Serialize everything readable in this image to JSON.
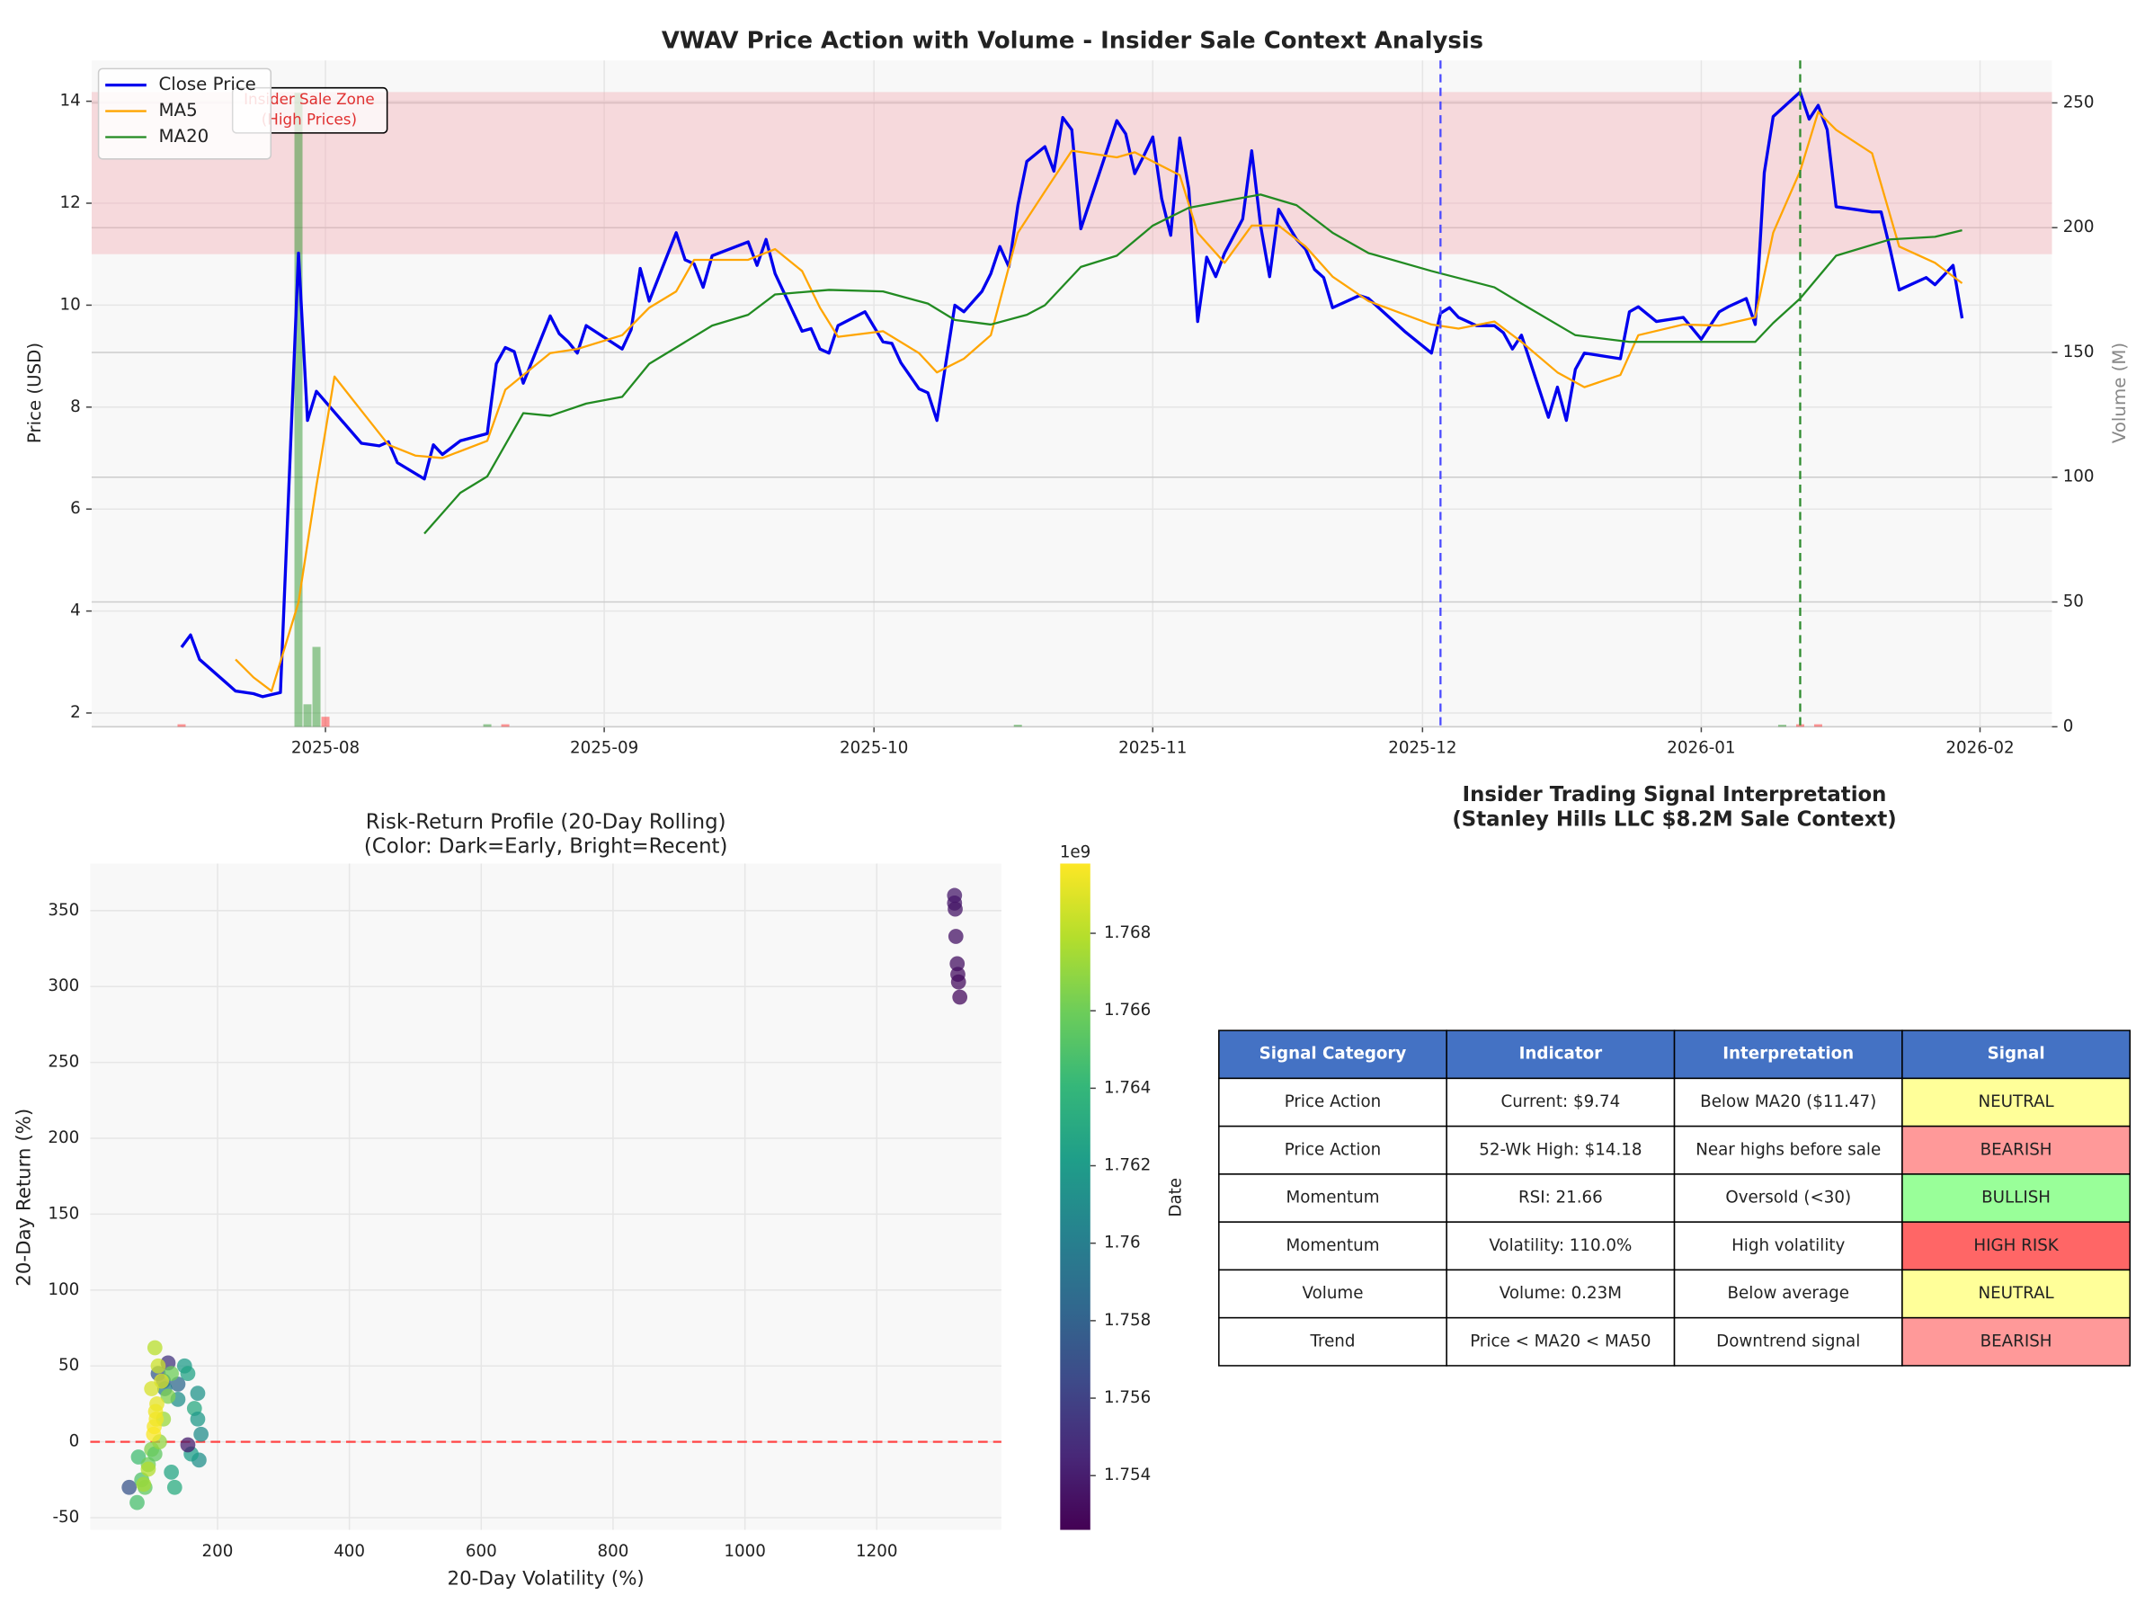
{
  "chart_data": [
    {
      "type": "line",
      "title": "VWAV Price Action with Volume - Insider Sale Context Analysis",
      "y_label": "Price (USD)",
      "y2_label": "Volume (M)",
      "xlim": [
        "2025-07-06",
        "2026-02-09"
      ],
      "ylim": [
        1.73,
        14.8
      ],
      "y2lim": [
        0,
        267
      ],
      "xticks": [
        {
          "value": "2025-08-01",
          "label": "2025-08"
        },
        {
          "value": "2025-09-01",
          "label": "2025-09"
        },
        {
          "value": "2025-10-01",
          "label": "2025-10"
        },
        {
          "value": "2025-11-01",
          "label": "2025-11"
        },
        {
          "value": "2025-12-01",
          "label": "2025-12"
        },
        {
          "value": "2026-01-01",
          "label": "2026-01"
        },
        {
          "value": "2026-02-01",
          "label": "2026-02"
        }
      ],
      "yticks": [
        2,
        4,
        6,
        8,
        10,
        12,
        14
      ],
      "y2ticks": [
        0,
        50,
        100,
        150,
        200,
        250
      ],
      "grid": true,
      "legend": "upper left",
      "series": [
        {
          "name": "Close Price",
          "color": "#0000ee",
          "x": [
            "2025-07-16",
            "2025-07-17",
            "2025-07-18",
            "2025-07-22",
            "2025-07-24",
            "2025-07-25",
            "2025-07-27",
            "2025-07-29",
            "2025-07-30",
            "2025-07-31",
            "2025-08-05",
            "2025-08-07",
            "2025-08-08",
            "2025-08-09",
            "2025-08-12",
            "2025-08-13",
            "2025-08-14",
            "2025-08-16",
            "2025-08-19",
            "2025-08-20",
            "2025-08-21",
            "2025-08-22",
            "2025-08-23",
            "2025-08-26",
            "2025-08-27",
            "2025-08-28",
            "2025-08-29",
            "2025-08-30",
            "2025-09-03",
            "2025-09-04",
            "2025-09-05",
            "2025-09-06",
            "2025-09-09",
            "2025-09-10",
            "2025-09-11",
            "2025-09-12",
            "2025-09-13",
            "2025-09-17",
            "2025-09-18",
            "2025-09-19",
            "2025-09-20",
            "2025-09-23",
            "2025-09-24",
            "2025-09-25",
            "2025-09-26",
            "2025-09-27",
            "2025-09-30",
            "2025-10-02",
            "2025-10-03",
            "2025-10-04",
            "2025-10-06",
            "2025-10-07",
            "2025-10-08",
            "2025-10-10",
            "2025-10-11",
            "2025-10-13",
            "2025-10-14",
            "2025-10-15",
            "2025-10-16",
            "2025-10-17",
            "2025-10-18",
            "2025-10-20",
            "2025-10-21",
            "2025-10-22",
            "2025-10-23",
            "2025-10-24",
            "2025-10-28",
            "2025-10-29",
            "2025-10-30",
            "2025-10-31",
            "2025-11-01",
            "2025-11-02",
            "2025-11-03",
            "2025-11-04",
            "2025-11-05",
            "2025-11-06",
            "2025-11-07",
            "2025-11-08",
            "2025-11-09",
            "2025-11-11",
            "2025-11-12",
            "2025-11-13",
            "2025-11-14",
            "2025-11-15",
            "2025-11-17",
            "2025-11-18",
            "2025-11-19",
            "2025-11-20",
            "2025-11-21",
            "2025-11-24",
            "2025-11-25",
            "2025-11-29",
            "2025-12-02",
            "2025-12-03",
            "2025-12-04",
            "2025-12-05",
            "2025-12-07",
            "2025-12-09",
            "2025-12-10",
            "2025-12-11",
            "2025-12-12",
            "2025-12-15",
            "2025-12-16",
            "2025-12-17",
            "2025-12-18",
            "2025-12-19",
            "2025-12-23",
            "2025-12-24",
            "2025-12-25",
            "2025-12-27",
            "2025-12-30",
            "2026-01-01",
            "2026-01-03",
            "2026-01-04",
            "2026-01-06",
            "2026-01-07",
            "2026-01-08",
            "2026-01-09",
            "2026-01-12",
            "2026-01-13",
            "2026-01-14",
            "2026-01-15",
            "2026-01-16",
            "2026-01-20",
            "2026-01-21",
            "2026-01-22",
            "2026-01-23",
            "2026-01-26",
            "2026-01-27",
            "2026-01-28",
            "2026-01-29",
            "2026-01-30"
          ],
          "values": [
            3.29,
            3.53,
            3.05,
            2.43,
            2.38,
            2.32,
            2.4,
            11.02,
            7.74,
            8.31,
            7.29,
            7.24,
            7.32,
            6.91,
            6.59,
            7.26,
            7.07,
            7.34,
            7.48,
            8.85,
            9.17,
            9.09,
            8.47,
            9.79,
            9.44,
            9.28,
            9.06,
            9.6,
            9.14,
            9.52,
            10.72,
            10.08,
            11.42,
            10.89,
            10.81,
            10.35,
            10.97,
            11.24,
            10.78,
            11.29,
            10.62,
            9.49,
            9.54,
            9.14,
            9.06,
            9.6,
            9.87,
            9.28,
            9.25,
            8.87,
            8.36,
            8.28,
            7.74,
            10.0,
            9.87,
            10.27,
            10.62,
            11.15,
            10.75,
            11.96,
            12.82,
            13.11,
            12.63,
            13.68,
            13.44,
            11.5,
            13.62,
            13.36,
            12.58,
            12.93,
            13.3,
            12.09,
            11.37,
            13.28,
            12.28,
            9.68,
            10.94,
            10.56,
            11.02,
            11.69,
            13.03,
            11.56,
            10.56,
            11.88,
            11.29,
            11.1,
            10.7,
            10.54,
            9.95,
            10.19,
            10.13,
            9.49,
            9.06,
            9.84,
            9.95,
            9.76,
            9.6,
            9.6,
            9.46,
            9.14,
            9.41,
            7.8,
            8.39,
            7.74,
            8.74,
            9.06,
            8.95,
            9.87,
            9.97,
            9.68,
            9.76,
            9.33,
            9.87,
            9.97,
            10.13,
            9.62,
            12.6,
            13.7,
            14.18,
            13.65,
            13.92,
            13.44,
            11.93,
            11.83,
            11.83,
            11.1,
            10.3,
            10.54,
            10.4,
            10.59,
            10.78,
            9.74
          ]
        },
        {
          "name": "MA5",
          "color": "#ffa500",
          "x": [
            "2025-07-22",
            "2025-07-24",
            "2025-07-26",
            "2025-07-29",
            "2025-07-31",
            "2025-08-02",
            "2025-08-05",
            "2025-08-08",
            "2025-08-11",
            "2025-08-14",
            "2025-08-19",
            "2025-08-21",
            "2025-08-26",
            "2025-08-29",
            "2025-09-03",
            "2025-09-06",
            "2025-09-09",
            "2025-09-11",
            "2025-09-17",
            "2025-09-20",
            "2025-09-23",
            "2025-09-25",
            "2025-09-27",
            "2025-10-02",
            "2025-10-06",
            "2025-10-08",
            "2025-10-11",
            "2025-10-14",
            "2025-10-17",
            "2025-10-20",
            "2025-10-23",
            "2025-10-28",
            "2025-10-30",
            "2025-11-04",
            "2025-11-06",
            "2025-11-09",
            "2025-11-12",
            "2025-11-15",
            "2025-11-18",
            "2025-11-21",
            "2025-11-25",
            "2025-12-02",
            "2025-12-05",
            "2025-12-09",
            "2025-12-12",
            "2025-12-16",
            "2025-12-19",
            "2025-12-23",
            "2025-12-25",
            "2025-12-30",
            "2026-01-03",
            "2026-01-07",
            "2026-01-09",
            "2026-01-12",
            "2026-01-14",
            "2026-01-16",
            "2026-01-20",
            "2026-01-23",
            "2026-01-27",
            "2026-01-30"
          ],
          "values": [
            3.05,
            2.7,
            2.43,
            4.17,
            6.46,
            8.6,
            7.93,
            7.26,
            7.05,
            7.0,
            7.34,
            8.34,
            9.06,
            9.14,
            9.41,
            9.95,
            10.27,
            10.89,
            10.89,
            11.1,
            10.67,
            9.95,
            9.38,
            9.49,
            9.06,
            8.68,
            8.95,
            9.41,
            11.42,
            12.23,
            13.03,
            12.9,
            13.0,
            12.55,
            11.42,
            10.83,
            11.56,
            11.56,
            11.15,
            10.56,
            10.08,
            9.62,
            9.54,
            9.68,
            9.28,
            8.68,
            8.39,
            8.63,
            9.41,
            9.62,
            9.6,
            9.76,
            11.42,
            12.63,
            13.79,
            13.44,
            12.98,
            11.15,
            10.83,
            10.43
          ]
        },
        {
          "name": "MA20",
          "color": "#228b22",
          "x": [
            "2025-08-12",
            "2025-08-16",
            "2025-08-19",
            "2025-08-23",
            "2025-08-26",
            "2025-08-30",
            "2025-09-03",
            "2025-09-06",
            "2025-09-13",
            "2025-09-17",
            "2025-09-20",
            "2025-09-26",
            "2025-10-02",
            "2025-10-07",
            "2025-10-10",
            "2025-10-14",
            "2025-10-18",
            "2025-10-20",
            "2025-10-24",
            "2025-10-28",
            "2025-11-01",
            "2025-11-05",
            "2025-11-09",
            "2025-11-13",
            "2025-11-17",
            "2025-11-21",
            "2025-11-25",
            "2025-12-02",
            "2025-12-09",
            "2025-12-12",
            "2025-12-18",
            "2025-12-24",
            "2025-12-30",
            "2026-01-07",
            "2026-01-09",
            "2026-01-12",
            "2026-01-16",
            "2026-01-22",
            "2026-01-27",
            "2026-01-30"
          ],
          "values": [
            5.52,
            6.32,
            6.64,
            7.88,
            7.83,
            8.07,
            8.2,
            8.85,
            9.6,
            9.81,
            10.21,
            10.3,
            10.27,
            10.03,
            9.71,
            9.62,
            9.81,
            10.0,
            10.75,
            10.97,
            11.56,
            11.91,
            12.04,
            12.17,
            11.96,
            11.42,
            11.02,
            10.67,
            10.35,
            10.03,
            9.41,
            9.28,
            9.28,
            9.28,
            9.65,
            10.13,
            10.97,
            11.29,
            11.34,
            11.47
          ]
        }
      ],
      "volume": {
        "x": [
          "2025-07-16",
          "2025-07-29",
          "2025-07-30",
          "2025-07-31",
          "2025-08-01",
          "2025-08-19",
          "2025-08-21",
          "2025-10-17",
          "2026-01-10",
          "2026-01-12",
          "2026-01-14"
        ],
        "values": [
          1,
          254,
          9,
          32,
          4,
          1,
          1,
          0.8,
          0.8,
          1,
          1
        ],
        "colors": [
          "red",
          "green",
          "green",
          "green",
          "red",
          "green",
          "red",
          "green",
          "green",
          "red",
          "red"
        ]
      },
      "zone": {
        "label": [
          "Insider Sale Zone",
          "(High Prices)"
        ],
        "range": [
          11.0,
          14.18
        ],
        "color": "#f4a0a8"
      },
      "vlines": [
        {
          "x": "2025-12-03",
          "color": "#4a4aff"
        },
        {
          "x": "2026-01-12",
          "color": "#2e8b2e"
        }
      ]
    },
    {
      "type": "scatter",
      "title": [
        "Risk-Return Profile (20-Day Rolling)",
        "(Color: Dark=Early, Bright=Recent)"
      ],
      "x_label": "20-Day Volatility (%)",
      "y_label": "20-Day Return (%)",
      "xlim": [
        7,
        1389
      ],
      "ylim": [
        -58,
        381
      ],
      "xticks": [
        200,
        400,
        600,
        800,
        1000,
        1200
      ],
      "yticks": [
        -50,
        0,
        50,
        100,
        150,
        200,
        250,
        300,
        350
      ],
      "grid": true,
      "hline": {
        "y": 0,
        "color": "#ff4444"
      },
      "x": [
        1318,
        1318,
        1319,
        1320,
        1322,
        1323,
        1324,
        1326,
        66,
        110,
        125,
        118,
        140,
        150,
        155,
        170,
        165,
        170,
        175,
        172,
        160,
        140,
        130,
        135,
        120,
        155,
        80,
        85,
        90,
        78,
        95,
        100,
        105,
        112,
        118,
        125,
        130,
        105,
        110,
        115,
        108,
        106,
        104,
        103,
        107,
        100,
        95,
        88
      ],
      "y": [
        360,
        355,
        351,
        333,
        315,
        308,
        303,
        293,
        -30,
        45,
        52,
        40,
        38,
        50,
        45,
        32,
        22,
        15,
        5,
        -12,
        -8,
        28,
        -20,
        -30,
        35,
        -2,
        -10,
        -25,
        -30,
        -40,
        -15,
        -5,
        -8,
        0,
        15,
        30,
        45,
        62,
        50,
        40,
        25,
        20,
        10,
        5,
        15,
        35,
        -18,
        -28
      ],
      "c": [
        1.7538,
        1.7537,
        1.7536,
        1.7535,
        1.7534,
        1.7533,
        1.7532,
        1.7531,
        1.7572,
        1.7575,
        1.7553,
        1.758,
        1.7585,
        1.762,
        1.7625,
        1.7615,
        1.763,
        1.7618,
        1.761,
        1.7612,
        1.7622,
        1.7612,
        1.7628,
        1.7632,
        1.76,
        1.754,
        1.7645,
        1.765,
        1.7655,
        1.7648,
        1.766,
        1.7665,
        1.7655,
        1.767,
        1.7672,
        1.7665,
        1.766,
        1.768,
        1.7685,
        1.769,
        1.7692,
        1.7694,
        1.7696,
        1.7697,
        1.7695,
        1.7688,
        1.7678,
        1.7675
      ],
      "colorbar": {
        "label": "Date",
        "offset_label": "1e9",
        "cmap": "viridis",
        "lim": [
          1.7526,
          1.7698
        ],
        "ticks": [
          1.754,
          1.756,
          1.758,
          1.76,
          1.762,
          1.764,
          1.766,
          1.768
        ]
      }
    },
    {
      "type": "table",
      "title": [
        "Insider Trading Signal Interpretation",
        "(Stanley Hills LLC $8.2M Sale Context)"
      ],
      "columns": [
        "Signal Category",
        "Indicator",
        "Interpretation",
        "Signal"
      ],
      "header_color": "#4472c4",
      "rows": [
        [
          "Price Action",
          "Current: $9.74",
          "Below MA20 ($11.47)",
          "NEUTRAL"
        ],
        [
          "Price Action",
          "52-Wk High: $14.18",
          "Near highs before sale",
          "BEARISH"
        ],
        [
          "Momentum",
          "RSI: 21.66",
          "Oversold (<30)",
          "BULLISH"
        ],
        [
          "Momentum",
          "Volatility: 110.0%",
          "High volatility",
          "HIGH RISK"
        ],
        [
          "Volume",
          "Volume: 0.23M",
          "Below average",
          "NEUTRAL"
        ],
        [
          "Trend",
          "Price < MA20 < MA50",
          "Downtrend signal",
          "BEARISH"
        ]
      ],
      "signal_colors": [
        "#ffff99",
        "#ff9999",
        "#99ff99",
        "#ff6666",
        "#ffff99",
        "#ff9999"
      ]
    }
  ]
}
